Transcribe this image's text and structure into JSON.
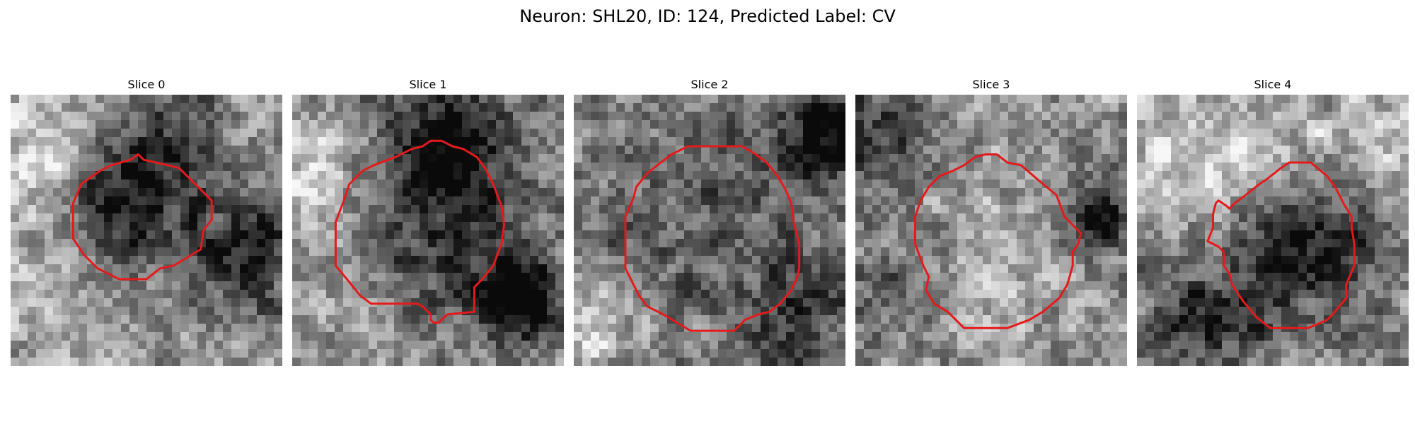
{
  "figure": {
    "title": "Neuron: SHL20, ID: 124, Predicted Label: CV"
  },
  "colors": {
    "contour": "#e41a1c",
    "colormap": "grayscale"
  },
  "panels": [
    {
      "title": "Slice 0",
      "seed": 11,
      "blobs": [
        [
          0.1,
          0.25,
          0.14,
          0.35
        ],
        [
          0.45,
          0.38,
          0.17,
          -0.55
        ],
        [
          0.88,
          0.6,
          0.15,
          -0.5
        ],
        [
          0.15,
          0.75,
          0.2,
          0.1
        ],
        [
          0.62,
          0.12,
          0.14,
          -0.2
        ]
      ],
      "contour": [
        [
          0.47,
          0.22
        ],
        [
          0.49,
          0.24
        ],
        [
          0.58,
          0.26
        ],
        [
          0.62,
          0.27
        ],
        [
          0.69,
          0.34
        ],
        [
          0.74,
          0.39
        ],
        [
          0.74,
          0.46
        ],
        [
          0.71,
          0.5
        ],
        [
          0.7,
          0.57
        ],
        [
          0.65,
          0.6
        ],
        [
          0.6,
          0.63
        ],
        [
          0.55,
          0.64
        ],
        [
          0.5,
          0.68
        ],
        [
          0.4,
          0.68
        ],
        [
          0.32,
          0.64
        ],
        [
          0.27,
          0.59
        ],
        [
          0.23,
          0.53
        ],
        [
          0.23,
          0.4
        ],
        [
          0.26,
          0.33
        ],
        [
          0.33,
          0.28
        ],
        [
          0.37,
          0.26
        ],
        [
          0.44,
          0.24
        ]
      ]
    },
    {
      "title": "Slice 1",
      "seed": 23,
      "blobs": [
        [
          0.12,
          0.3,
          0.15,
          0.3
        ],
        [
          0.5,
          0.45,
          0.26,
          -0.35
        ],
        [
          0.84,
          0.75,
          0.12,
          -0.7
        ],
        [
          0.6,
          0.15,
          0.15,
          -0.45
        ],
        [
          0.2,
          0.85,
          0.15,
          0.1
        ]
      ],
      "contour": [
        [
          0.38,
          0.23
        ],
        [
          0.44,
          0.2
        ],
        [
          0.48,
          0.19
        ],
        [
          0.51,
          0.17
        ],
        [
          0.55,
          0.17
        ],
        [
          0.59,
          0.19
        ],
        [
          0.63,
          0.2
        ],
        [
          0.68,
          0.23
        ],
        [
          0.71,
          0.27
        ],
        [
          0.74,
          0.33
        ],
        [
          0.77,
          0.41
        ],
        [
          0.78,
          0.48
        ],
        [
          0.77,
          0.55
        ],
        [
          0.74,
          0.63
        ],
        [
          0.7,
          0.68
        ],
        [
          0.67,
          0.71
        ],
        [
          0.67,
          0.8
        ],
        [
          0.57,
          0.81
        ],
        [
          0.54,
          0.84
        ],
        [
          0.52,
          0.84
        ],
        [
          0.51,
          0.83
        ],
        [
          0.51,
          0.81
        ],
        [
          0.48,
          0.78
        ],
        [
          0.46,
          0.77
        ],
        [
          0.29,
          0.77
        ],
        [
          0.25,
          0.74
        ],
        [
          0.21,
          0.69
        ],
        [
          0.16,
          0.63
        ],
        [
          0.16,
          0.47
        ],
        [
          0.19,
          0.39
        ],
        [
          0.21,
          0.33
        ],
        [
          0.26,
          0.28
        ],
        [
          0.3,
          0.26
        ]
      ]
    },
    {
      "title": "Slice 2",
      "seed": 37,
      "blobs": [
        [
          0.5,
          0.5,
          0.3,
          0.05
        ],
        [
          0.5,
          0.5,
          0.38,
          -0.25
        ],
        [
          0.95,
          0.1,
          0.15,
          -0.55
        ],
        [
          0.08,
          0.85,
          0.12,
          0.3
        ],
        [
          0.85,
          0.85,
          0.14,
          -0.3
        ]
      ],
      "contour": [
        [
          0.42,
          0.19
        ],
        [
          0.62,
          0.19
        ],
        [
          0.67,
          0.22
        ],
        [
          0.71,
          0.25
        ],
        [
          0.75,
          0.3
        ],
        [
          0.78,
          0.35
        ],
        [
          0.8,
          0.4
        ],
        [
          0.81,
          0.47
        ],
        [
          0.83,
          0.55
        ],
        [
          0.83,
          0.64
        ],
        [
          0.82,
          0.68
        ],
        [
          0.8,
          0.72
        ],
        [
          0.76,
          0.77
        ],
        [
          0.72,
          0.8
        ],
        [
          0.68,
          0.81
        ],
        [
          0.63,
          0.83
        ],
        [
          0.59,
          0.87
        ],
        [
          0.43,
          0.87
        ],
        [
          0.38,
          0.84
        ],
        [
          0.33,
          0.81
        ],
        [
          0.27,
          0.78
        ],
        [
          0.24,
          0.74
        ],
        [
          0.22,
          0.7
        ],
        [
          0.19,
          0.64
        ],
        [
          0.19,
          0.45
        ],
        [
          0.22,
          0.38
        ],
        [
          0.23,
          0.34
        ],
        [
          0.27,
          0.29
        ],
        [
          0.32,
          0.25
        ],
        [
          0.36,
          0.22
        ]
      ]
    },
    {
      "title": "Slice 3",
      "seed": 41,
      "blobs": [
        [
          0.5,
          0.55,
          0.28,
          0.2
        ],
        [
          0.5,
          0.55,
          0.36,
          -0.1
        ],
        [
          0.1,
          0.15,
          0.15,
          -0.35
        ],
        [
          0.9,
          0.45,
          0.1,
          -0.5
        ],
        [
          0.15,
          0.7,
          0.14,
          -0.25
        ]
      ],
      "contour": [
        [
          0.48,
          0.22
        ],
        [
          0.52,
          0.22
        ],
        [
          0.56,
          0.25
        ],
        [
          0.61,
          0.26
        ],
        [
          0.68,
          0.32
        ],
        [
          0.74,
          0.37
        ],
        [
          0.77,
          0.45
        ],
        [
          0.8,
          0.48
        ],
        [
          0.83,
          0.51
        ],
        [
          0.82,
          0.55
        ],
        [
          0.8,
          0.58
        ],
        [
          0.8,
          0.63
        ],
        [
          0.78,
          0.7
        ],
        [
          0.75,
          0.75
        ],
        [
          0.69,
          0.8
        ],
        [
          0.64,
          0.83
        ],
        [
          0.56,
          0.86
        ],
        [
          0.4,
          0.86
        ],
        [
          0.34,
          0.8
        ],
        [
          0.29,
          0.77
        ],
        [
          0.26,
          0.72
        ],
        [
          0.27,
          0.67
        ],
        [
          0.25,
          0.63
        ],
        [
          0.22,
          0.55
        ],
        [
          0.22,
          0.45
        ],
        [
          0.24,
          0.39
        ],
        [
          0.27,
          0.34
        ],
        [
          0.31,
          0.3
        ],
        [
          0.36,
          0.28
        ],
        [
          0.4,
          0.26
        ],
        [
          0.44,
          0.23
        ]
      ]
    },
    {
      "title": "Slice 4",
      "seed": 53,
      "blobs": [
        [
          0.62,
          0.55,
          0.2,
          -0.45
        ],
        [
          0.2,
          0.25,
          0.16,
          0.25
        ],
        [
          0.55,
          0.18,
          0.14,
          0.2
        ],
        [
          0.25,
          0.85,
          0.16,
          -0.4
        ],
        [
          0.9,
          0.2,
          0.12,
          0.15
        ]
      ],
      "contour": [
        [
          0.45,
          0.33
        ],
        [
          0.48,
          0.31
        ],
        [
          0.53,
          0.27
        ],
        [
          0.56,
          0.25
        ],
        [
          0.64,
          0.25
        ],
        [
          0.7,
          0.3
        ],
        [
          0.73,
          0.34
        ],
        [
          0.76,
          0.4
        ],
        [
          0.79,
          0.45
        ],
        [
          0.79,
          0.49
        ],
        [
          0.8,
          0.55
        ],
        [
          0.8,
          0.63
        ],
        [
          0.77,
          0.7
        ],
        [
          0.77,
          0.75
        ],
        [
          0.72,
          0.81
        ],
        [
          0.7,
          0.83
        ],
        [
          0.63,
          0.86
        ],
        [
          0.49,
          0.86
        ],
        [
          0.44,
          0.82
        ],
        [
          0.39,
          0.76
        ],
        [
          0.35,
          0.7
        ],
        [
          0.34,
          0.66
        ],
        [
          0.32,
          0.63
        ],
        [
          0.32,
          0.58
        ],
        [
          0.3,
          0.56
        ],
        [
          0.26,
          0.54
        ],
        [
          0.28,
          0.49
        ],
        [
          0.28,
          0.44
        ],
        [
          0.29,
          0.4
        ],
        [
          0.3,
          0.39
        ],
        [
          0.33,
          0.41
        ],
        [
          0.34,
          0.42
        ],
        [
          0.36,
          0.4
        ],
        [
          0.4,
          0.37
        ]
      ]
    }
  ]
}
